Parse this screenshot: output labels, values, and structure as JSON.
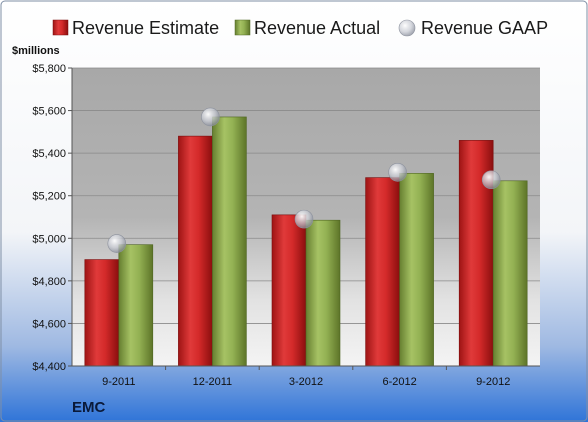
{
  "chart_data": {
    "type": "bar",
    "unit_label": "$millions",
    "company": "EMC",
    "categories": [
      "9-2011",
      "12-2011",
      "3-2012",
      "6-2012",
      "9-2012"
    ],
    "series": [
      {
        "name": "Revenue Estimate",
        "kind": "bar",
        "color": "#d42a2a",
        "values": [
          4900,
          5480,
          5110,
          5285,
          5460
        ]
      },
      {
        "name": "Revenue Actual",
        "kind": "bar",
        "color": "#8fae4e",
        "values": [
          4970,
          5570,
          5085,
          5305,
          5270
        ]
      },
      {
        "name": "Revenue GAAP",
        "kind": "marker",
        "color": "#c4c8d0",
        "values": [
          4975,
          5570,
          5090,
          5310,
          5275
        ]
      }
    ],
    "ylim": [
      4400,
      5800
    ],
    "yticks": [
      "$4,400",
      "$4,600",
      "$4,800",
      "$5,000",
      "$5,200",
      "$5,400",
      "$5,600",
      "$5,800"
    ],
    "ytick_values": [
      4400,
      4600,
      4800,
      5000,
      5200,
      5400,
      5600,
      5800
    ],
    "grid": true,
    "legend_position": "top"
  }
}
